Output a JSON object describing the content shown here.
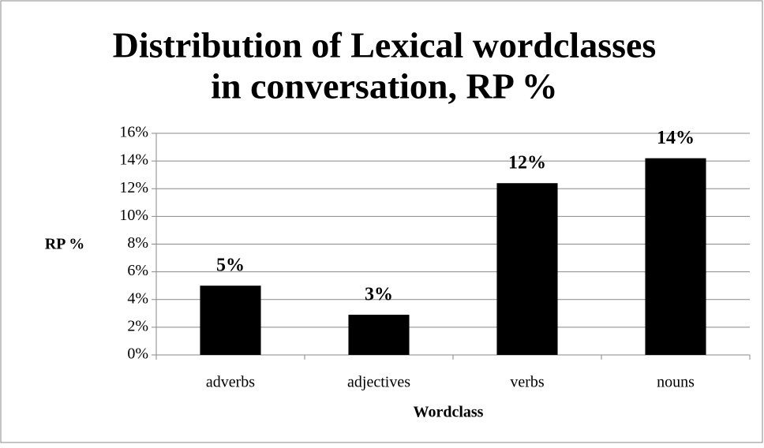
{
  "chart_data": {
    "type": "bar",
    "title": [
      "Distribution of Lexical wordclasses",
      "in conversation, RP %"
    ],
    "x_label": "Wordclass",
    "y_label": "RP %",
    "categories": [
      "adverbs",
      "adjectives",
      "verbs",
      "nouns"
    ],
    "values": [
      5.0,
      2.9,
      12.4,
      14.2
    ],
    "value_labels": [
      "5%",
      "3%",
      "12%",
      "14%"
    ],
    "color": "#000000",
    "ylim": [
      0,
      16
    ],
    "yticks": [
      {
        "value": 0,
        "label": "0%"
      },
      {
        "value": 2,
        "label": "2%"
      },
      {
        "value": 4,
        "label": "4%"
      },
      {
        "value": 6,
        "label": "6%"
      },
      {
        "value": 8,
        "label": "8%"
      },
      {
        "value": 10,
        "label": "10%"
      },
      {
        "value": 12,
        "label": "12%"
      },
      {
        "value": 14,
        "label": "14%"
      },
      {
        "value": 16,
        "label": "16%"
      }
    ],
    "grid": true
  }
}
